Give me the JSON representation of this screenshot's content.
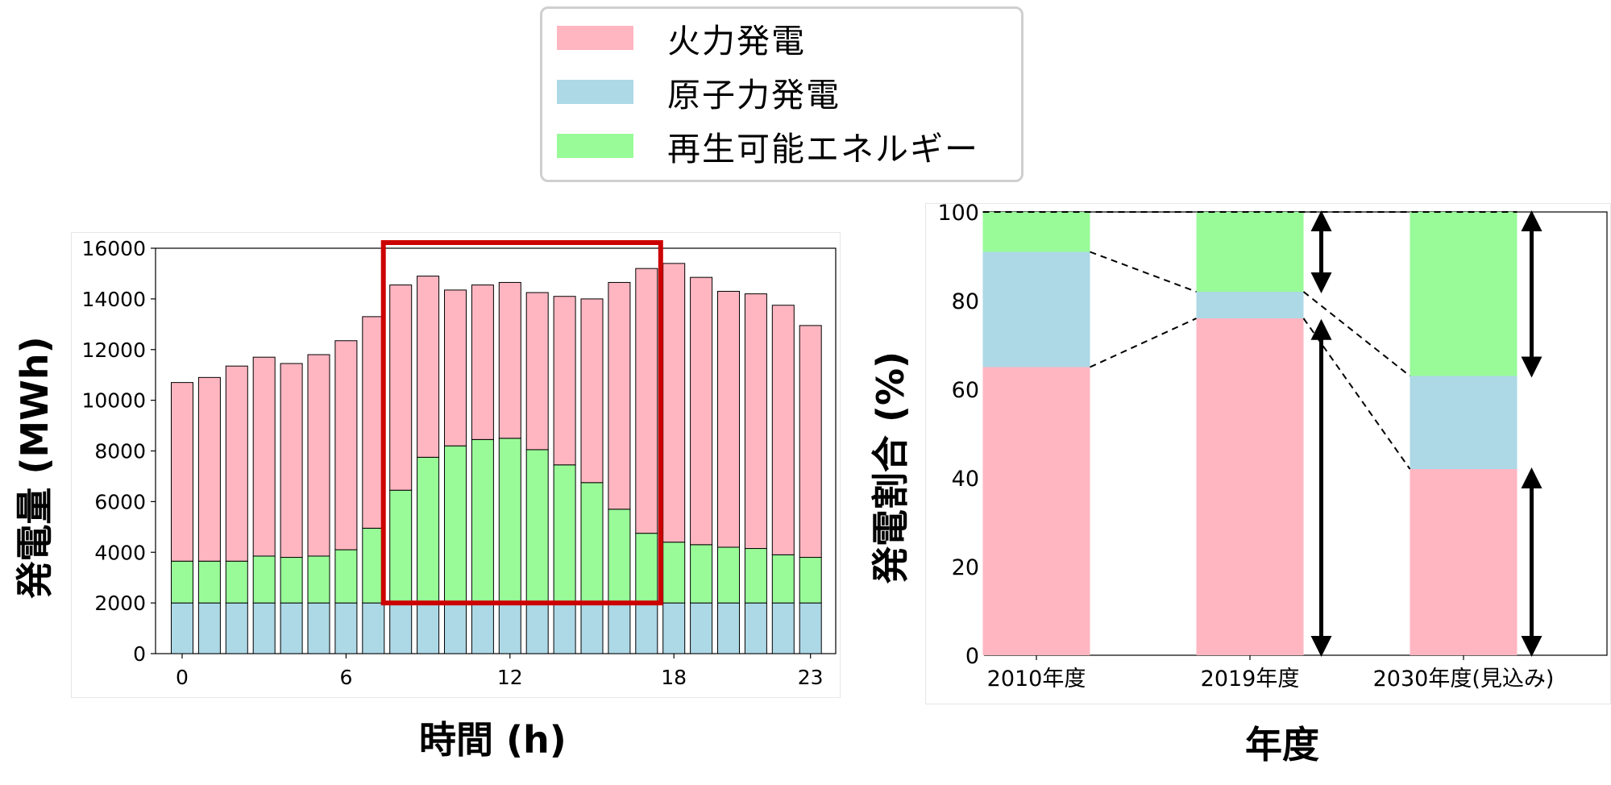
{
  "legend": {
    "items": [
      {
        "label": "火力発電",
        "color": "#FFB6C1"
      },
      {
        "label": "原子力発電",
        "color": "#ADD8E6"
      },
      {
        "label": "再生可能エネルギー",
        "color": "#98FB98"
      }
    ]
  },
  "chart_data": [
    {
      "type": "bar",
      "stacked": true,
      "title": "",
      "xlabel": "時間 (h)",
      "ylabel": "発電量 (MWh)",
      "x": [
        0,
        1,
        2,
        3,
        4,
        5,
        6,
        7,
        8,
        9,
        10,
        11,
        12,
        13,
        14,
        15,
        16,
        17,
        18,
        19,
        20,
        21,
        22,
        23
      ],
      "xticks": [
        0,
        6,
        12,
        18,
        23
      ],
      "yticks": [
        0,
        2000,
        4000,
        6000,
        8000,
        10000,
        12000,
        14000,
        16000
      ],
      "ylim": [
        0,
        16000
      ],
      "series": [
        {
          "name": "原子力発電",
          "color": "#ADD8E6",
          "values": [
            2000,
            2000,
            2000,
            2000,
            2000,
            2000,
            2000,
            2000,
            2000,
            2000,
            2000,
            2000,
            2000,
            2000,
            2000,
            2000,
            2000,
            2000,
            2000,
            2000,
            2000,
            2000,
            2000,
            2000
          ]
        },
        {
          "name": "再生可能エネルギー",
          "color": "#98FB98",
          "values": [
            1650,
            1650,
            1650,
            1850,
            1800,
            1850,
            2100,
            2950,
            4450,
            5750,
            6200,
            6450,
            6500,
            6050,
            5450,
            4750,
            3700,
            2750,
            2400,
            2300,
            2200,
            2150,
            1900,
            1800
          ]
        },
        {
          "name": "火力発電",
          "color": "#FFB6C1",
          "values": [
            7050,
            7250,
            7700,
            7850,
            7650,
            7950,
            8250,
            8350,
            8100,
            7150,
            6150,
            6100,
            6150,
            6200,
            6650,
            7250,
            8950,
            10450,
            11000,
            10550,
            10100,
            10050,
            9850,
            9150
          ]
        }
      ],
      "highlight": {
        "from_hour": 8,
        "to_hour": 17,
        "color": "#CC0000"
      }
    },
    {
      "type": "bar",
      "stacked": true,
      "title": "",
      "xlabel": "年度",
      "ylabel": "発電割合 (%)",
      "categories": [
        "2010年度",
        "2019年度",
        "2030年度(見込み)"
      ],
      "yticks": [
        0,
        20,
        40,
        60,
        80,
        100
      ],
      "ylim": [
        0,
        100
      ],
      "series": [
        {
          "name": "火力発電",
          "color": "#FFB6C1",
          "values": [
            65,
            76,
            42
          ]
        },
        {
          "name": "原子力発電",
          "color": "#ADD8E6",
          "values": [
            26,
            6,
            21
          ]
        },
        {
          "name": "再生可能エネルギー",
          "color": "#98FB98",
          "values": [
            9,
            18,
            37
          ]
        }
      ]
    }
  ]
}
